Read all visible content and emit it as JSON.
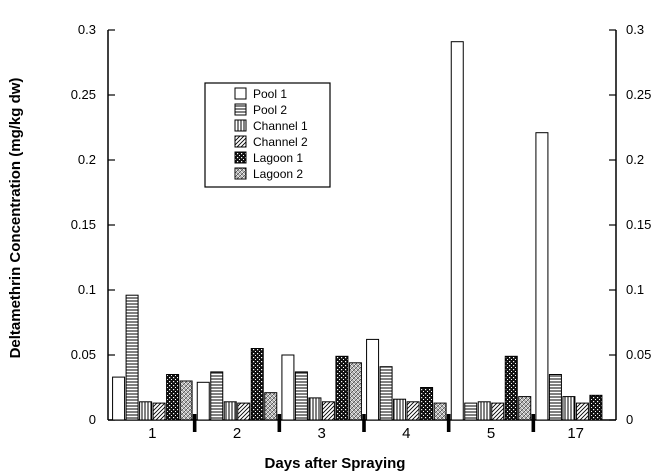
{
  "chart_data": {
    "type": "bar",
    "title": "",
    "xlabel": "Days after Spraying",
    "ylabel": "Deltamethrin Concentration (mg/kg dw)",
    "ylim": [
      0,
      0.3
    ],
    "yticks": [
      "0",
      "0.05",
      "0.1",
      "0.15",
      "0.2",
      "0.25",
      "0.3"
    ],
    "right_yticks": [
      "0",
      "0.05",
      "0.1",
      "0.15",
      "0.2",
      "0.25",
      "0.3"
    ],
    "categories": [
      "1",
      "2",
      "3",
      "4",
      "5",
      "17"
    ],
    "legend_position": "upper-left-center",
    "grid": false,
    "series": [
      {
        "name": "Pool 1",
        "pattern": "blank",
        "values": [
          0.033,
          0.029,
          0.05,
          0.062,
          0.291,
          0.221
        ]
      },
      {
        "name": "Pool 2",
        "pattern": "hlines",
        "values": [
          0.096,
          0.037,
          0.037,
          0.041,
          0.013,
          0.035
        ]
      },
      {
        "name": "Channel 1",
        "pattern": "vlines",
        "values": [
          0.014,
          0.014,
          0.017,
          0.016,
          0.014,
          0.018
        ]
      },
      {
        "name": "Channel 2",
        "pattern": "diag",
        "values": [
          0.013,
          0.013,
          0.014,
          0.014,
          0.013,
          0.013
        ]
      },
      {
        "name": "Lagoon 1",
        "pattern": "dark",
        "values": [
          0.035,
          0.055,
          0.049,
          0.025,
          0.049,
          0.019
        ]
      },
      {
        "name": "Lagoon 2",
        "pattern": "dots",
        "values": [
          0.03,
          0.021,
          0.044,
          0.013,
          0.018,
          0
        ]
      }
    ]
  }
}
